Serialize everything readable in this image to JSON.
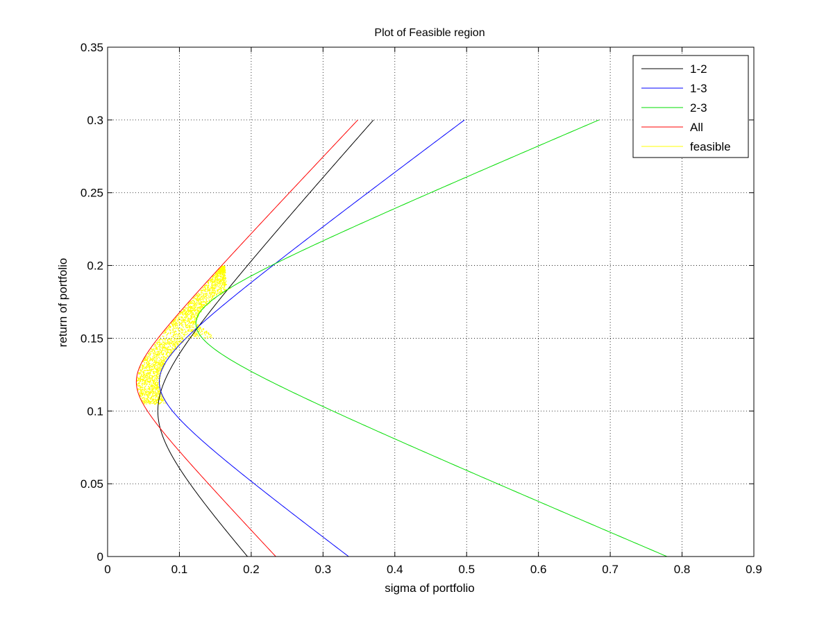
{
  "chart_data": {
    "type": "line",
    "title": "Plot of Feasible region",
    "xlabel": "sigma of portfolio",
    "ylabel": "return of portfolio",
    "xlim": [
      0,
      0.9
    ],
    "ylim": [
      0,
      0.35
    ],
    "xticks": [
      0,
      0.1,
      0.2,
      0.3,
      0.4,
      0.5,
      0.6,
      0.7,
      0.8,
      0.9
    ],
    "xtick_labels": [
      "0",
      "0.1",
      "0.2",
      "0.3",
      "0.4",
      "0.5",
      "0.6",
      "0.7",
      "0.8",
      "0.9"
    ],
    "yticks": [
      0,
      0.05,
      0.1,
      0.15,
      0.2,
      0.25,
      0.3,
      0.35
    ],
    "ytick_labels": [
      "0",
      "0.05",
      "0.1",
      "0.15",
      "0.2",
      "0.25",
      "0.3",
      "0.35"
    ],
    "grid": true,
    "legend_position": "top-right",
    "series": [
      {
        "name": "1-2",
        "color": "#000000",
        "curve": {
          "min_sigma": 0.07,
          "min_return": 0.1,
          "asymptote_slope": 0.55
        },
        "return_range": [
          0,
          0.3
        ]
      },
      {
        "name": "1-3",
        "color": "#0000ff",
        "curve": {
          "min_sigma": 0.072,
          "min_return": 0.12,
          "asymptote_slope": 0.366
        },
        "return_range": [
          0,
          0.3
        ]
      },
      {
        "name": "2-3",
        "color": "#00dd00",
        "curve": {
          "min_sigma": 0.123,
          "min_return": 0.16,
          "asymptote_slope": 0.208
        },
        "return_range": [
          0,
          0.3
        ]
      },
      {
        "name": "All",
        "color": "#ff0000",
        "curve": {
          "min_sigma": 0.04,
          "min_return": 0.12,
          "asymptote_slope": 0.52
        },
        "return_range": [
          0,
          0.3
        ]
      },
      {
        "name": "feasible",
        "color": "#ffff00",
        "type": "scatter",
        "region": {
          "lower_bound": "All",
          "upper_bound": "feasible_outer",
          "return_range": [
            0.105,
            0.2
          ]
        }
      }
    ]
  }
}
